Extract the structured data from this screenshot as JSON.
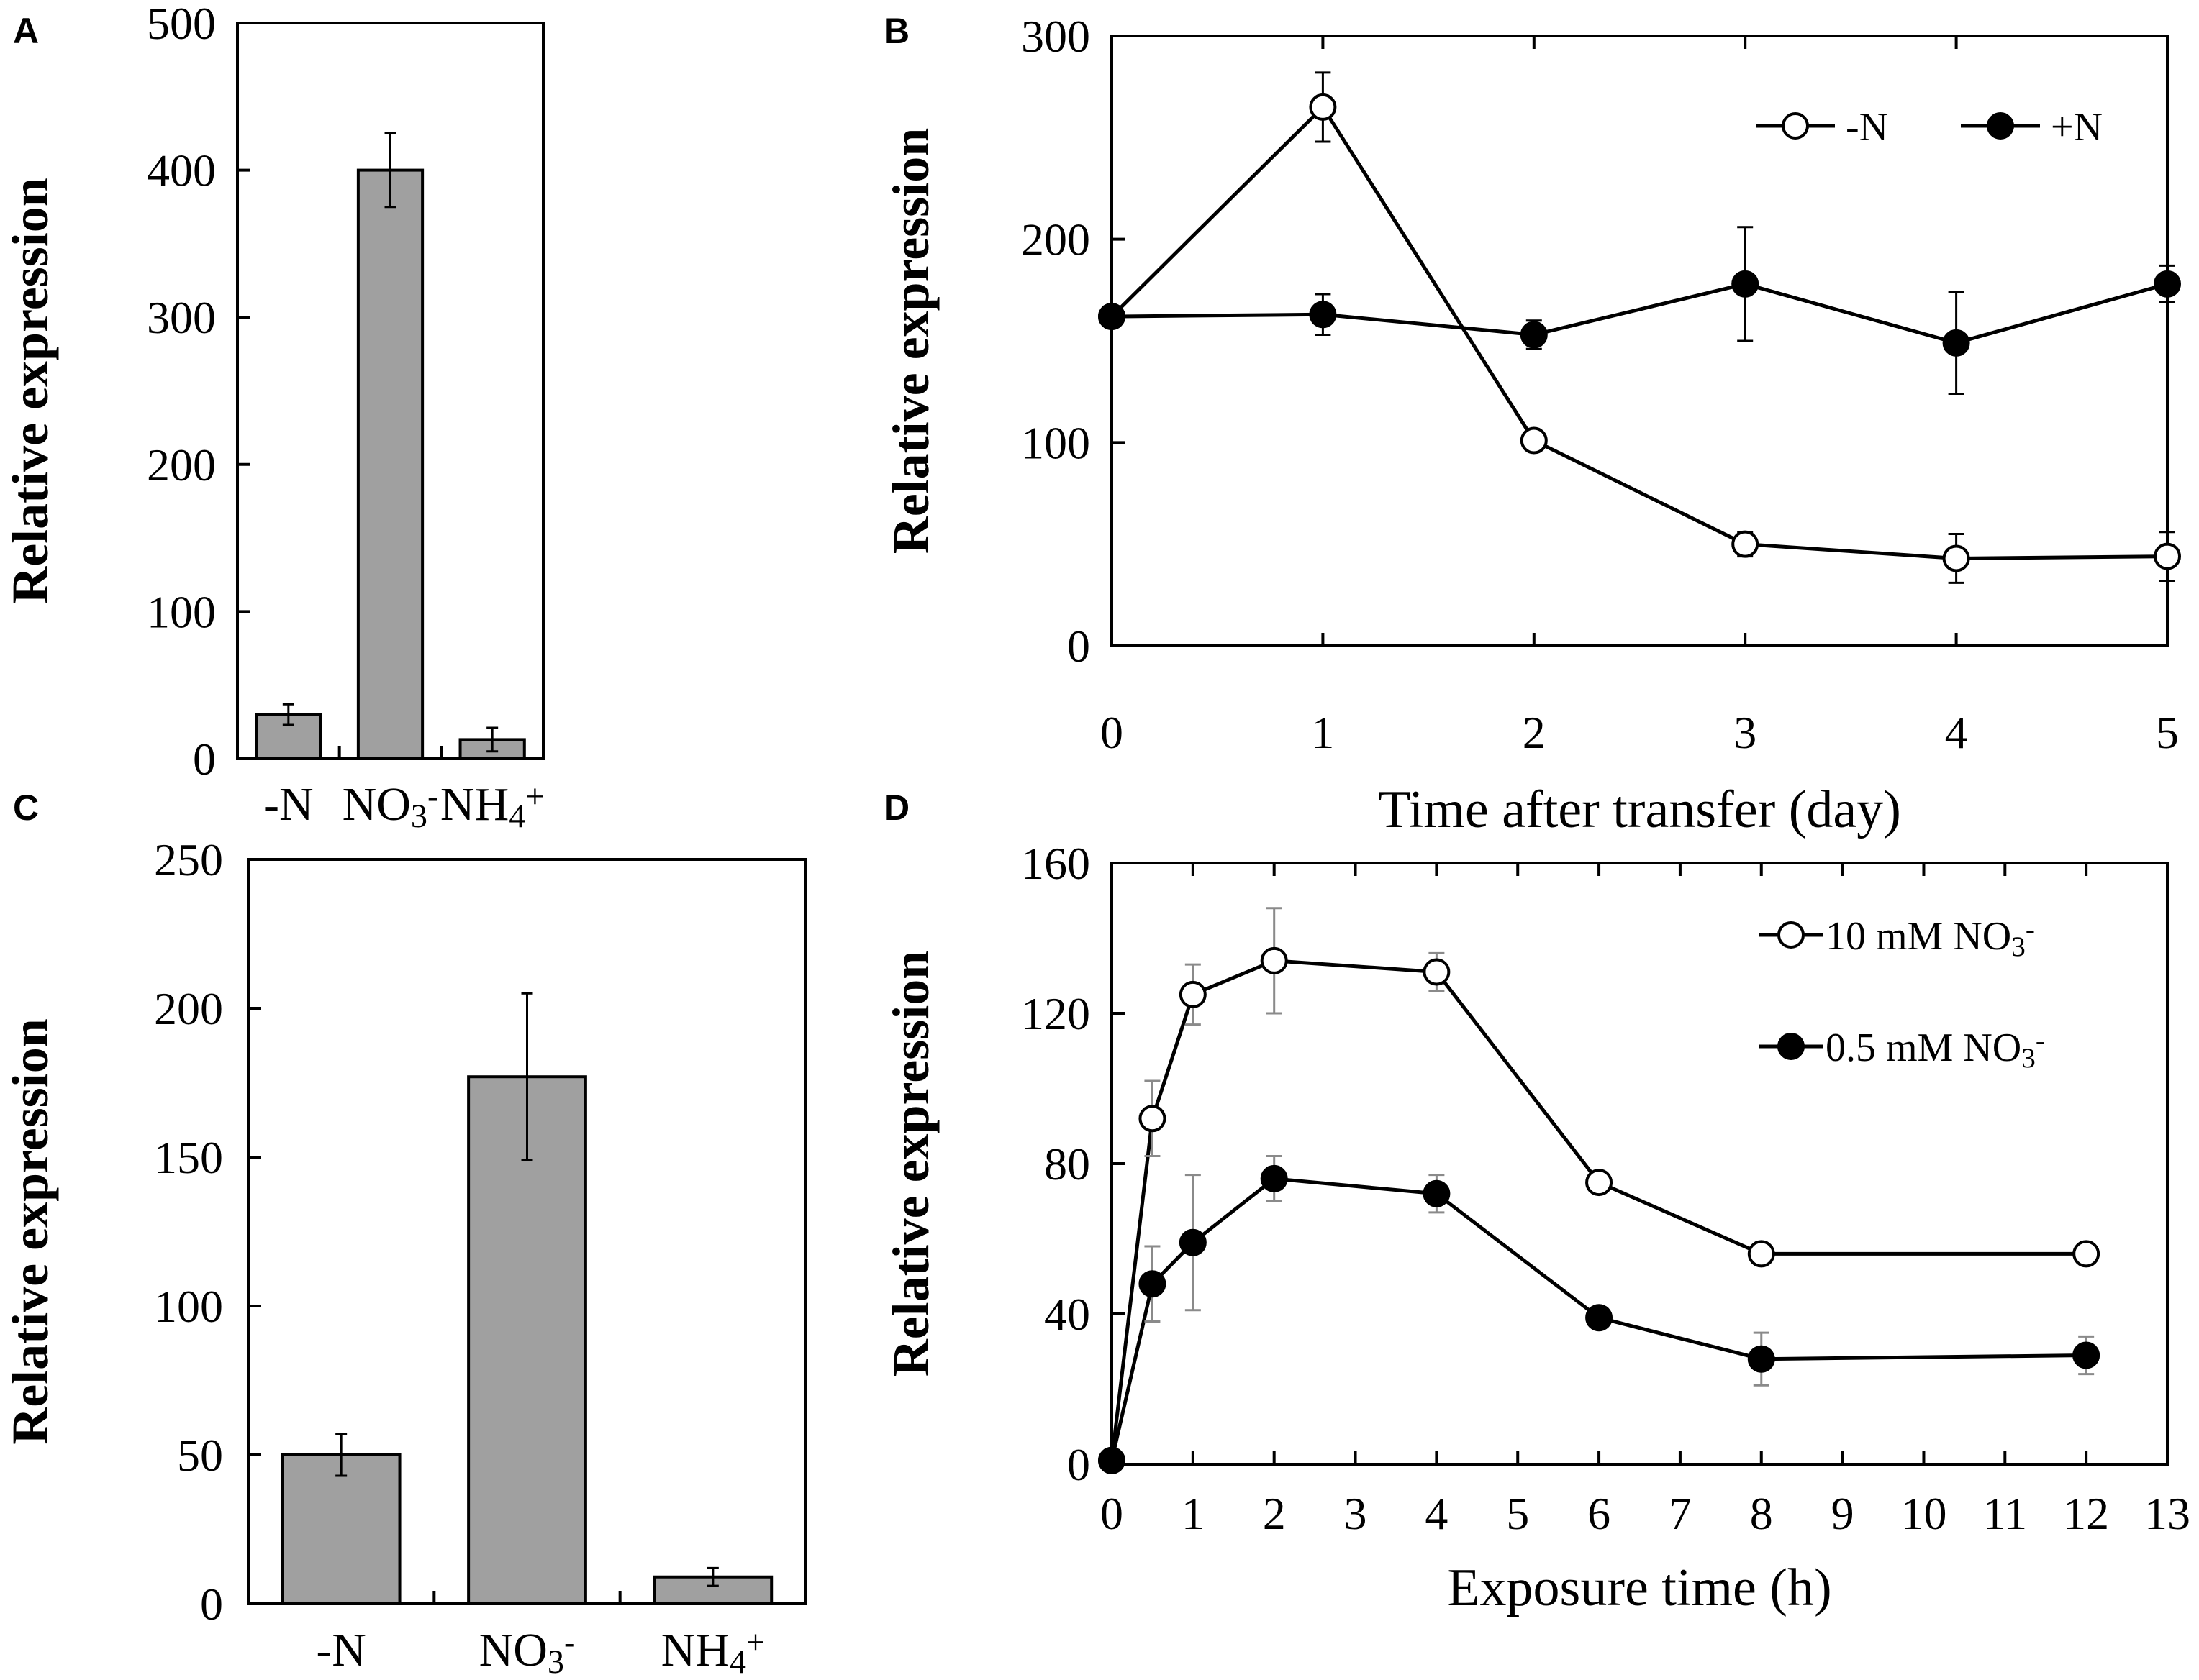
{
  "chart_data": [
    {
      "id": "A",
      "panel_label": "A",
      "type": "bar",
      "ylabel": "Relative expression",
      "xlabel": "",
      "ylim": [
        0,
        500
      ],
      "yticks": [
        "0",
        "100",
        "200",
        "300",
        "400",
        "500"
      ],
      "categories": [
        {
          "text": "-N",
          "sub": "",
          "sup": ""
        },
        {
          "text": "NO",
          "sub": "3",
          "sup": "-"
        },
        {
          "text": "NH",
          "sub": "4",
          "sup": "+"
        }
      ],
      "values": [
        30,
        400,
        13
      ],
      "errors": [
        7,
        25,
        8
      ]
    },
    {
      "id": "B",
      "panel_label": "B",
      "type": "line",
      "ylabel": "Relative expression",
      "xlabel": "Time after transfer (day)",
      "xlim": [
        0,
        5
      ],
      "ylim": [
        0,
        300
      ],
      "xticks": [
        "0",
        "1",
        "2",
        "3",
        "4",
        "5"
      ],
      "yticks": [
        "0",
        "100",
        "200",
        "300"
      ],
      "legend_position": "top-right",
      "series": [
        {
          "name": "-N",
          "sub": "",
          "sup": "",
          "marker": "open",
          "x": [
            0,
            1,
            2,
            3,
            4,
            5
          ],
          "y": [
            162,
            265,
            101,
            50,
            43,
            44
          ],
          "err": [
            0,
            17,
            0,
            6,
            12,
            12
          ]
        },
        {
          "name": "+N",
          "sub": "",
          "sup": "",
          "marker": "filled",
          "x": [
            0,
            1,
            2,
            3,
            4,
            5
          ],
          "y": [
            162,
            163,
            153,
            178,
            149,
            178
          ],
          "err": [
            0,
            10,
            7,
            28,
            25,
            9
          ]
        }
      ]
    },
    {
      "id": "C",
      "panel_label": "C",
      "type": "bar",
      "ylabel": "Relative expression",
      "xlabel": "",
      "ylim": [
        0,
        250
      ],
      "yticks": [
        "0",
        "50",
        "100",
        "150",
        "200",
        "250"
      ],
      "categories": [
        {
          "text": "-N",
          "sub": "",
          "sup": ""
        },
        {
          "text": "NO",
          "sub": "3",
          "sup": "-"
        },
        {
          "text": "NH",
          "sub": "4",
          "sup": "+"
        }
      ],
      "values": [
        50,
        177,
        9
      ],
      "errors": [
        7,
        28,
        3
      ]
    },
    {
      "id": "D",
      "panel_label": "D",
      "type": "line",
      "ylabel": "Relative expression",
      "xlabel": "Exposure time (h)",
      "xlim": [
        0,
        13
      ],
      "ylim": [
        0,
        160
      ],
      "xticks": [
        "0",
        "1",
        "2",
        "3",
        "4",
        "5",
        "6",
        "7",
        "8",
        "9",
        "10",
        "11",
        "12",
        "13"
      ],
      "yticks": [
        "0",
        "40",
        "80",
        "120",
        "160"
      ],
      "legend_position": "top-right",
      "series": [
        {
          "name": "10 mM  NO",
          "sub": "3",
          "sup": "-",
          "marker": "open",
          "x": [
            0,
            0.5,
            1,
            2,
            4,
            6,
            8,
            12
          ],
          "y": [
            1,
            92,
            125,
            134,
            131,
            75,
            56,
            56
          ],
          "err": [
            0,
            10,
            8,
            14,
            5,
            0,
            0,
            0
          ]
        },
        {
          "name": "0.5 mM NO",
          "sub": "3",
          "sup": "-",
          "marker": "filled",
          "x": [
            0,
            0.5,
            1,
            2,
            4,
            6,
            8,
            12
          ],
          "y": [
            1,
            48,
            59,
            76,
            72,
            39,
            28,
            29
          ],
          "err": [
            0,
            10,
            18,
            6,
            5,
            0,
            7,
            5
          ]
        }
      ]
    }
  ]
}
